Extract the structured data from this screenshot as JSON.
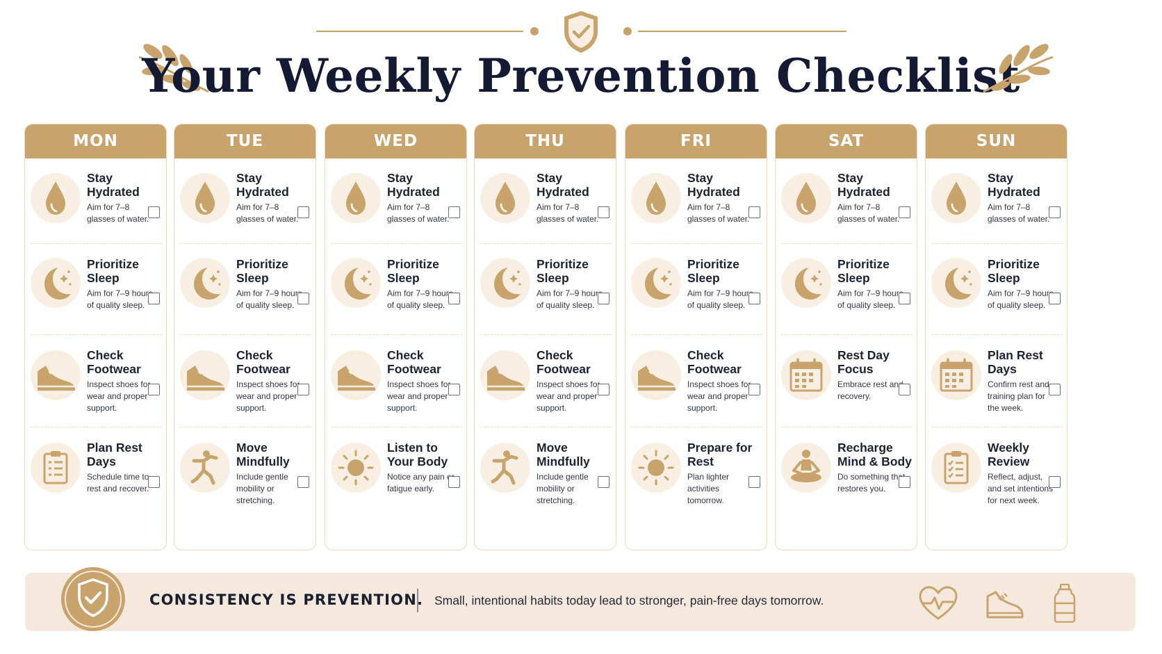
{
  "title": "Your Weekly Prevention Checklist",
  "colors": {
    "accent": "#c9a36c",
    "accent_light": "#f8efe2",
    "navy": "#141a33",
    "banner_bg": "#f4e9dc"
  },
  "days": [
    {
      "name": "MON",
      "items": [
        {
          "title": "Stay Hydrated",
          "desc": "Aim for 7–8 glasses of water.",
          "icon": "water-drop-icon",
          "checked": false
        },
        {
          "title": "Prioritize Sleep",
          "desc": "Aim for 7–9 hours of quality sleep.",
          "icon": "moon-icon",
          "checked": false
        },
        {
          "title": "Check Footwear",
          "desc": "Inspect shoes for wear and proper support.",
          "icon": "shoe-icon",
          "checked": false
        },
        {
          "title": "Plan Rest Days",
          "desc": "Schedule time to rest and recover.",
          "icon": "clipboard-icon",
          "checked": false
        }
      ]
    },
    {
      "name": "TUE",
      "items": [
        {
          "title": "Stay Hydrated",
          "desc": "Aim for 7–8 glasses of water.",
          "icon": "water-drop-icon",
          "checked": false
        },
        {
          "title": "Prioritize Sleep",
          "desc": "Aim for 7–9 hours of quality sleep.",
          "icon": "moon-icon",
          "checked": false
        },
        {
          "title": "Check Footwear",
          "desc": "Inspect shoes for wear and proper support.",
          "icon": "shoe-icon",
          "checked": false
        },
        {
          "title": "Move Mindfully",
          "desc": "Include gentle mobility or stretching.",
          "icon": "stretch-icon",
          "checked": false
        }
      ]
    },
    {
      "name": "WED",
      "items": [
        {
          "title": "Stay Hydrated",
          "desc": "Aim for 7–8 glasses of water.",
          "icon": "water-drop-icon",
          "checked": false
        },
        {
          "title": "Prioritize Sleep",
          "desc": "Aim for 7–9 hours of quality sleep.",
          "icon": "moon-icon",
          "checked": false
        },
        {
          "title": "Check Footwear",
          "desc": "Inspect shoes for wear and proper support.",
          "icon": "shoe-icon",
          "checked": false
        },
        {
          "title": "Listen to Your Body",
          "desc": "Notice any pain or fatigue early.",
          "icon": "sun-icon",
          "checked": false
        }
      ]
    },
    {
      "name": "THU",
      "items": [
        {
          "title": "Stay Hydrated",
          "desc": "Aim for 7–8 glasses of water.",
          "icon": "water-drop-icon",
          "checked": false
        },
        {
          "title": "Prioritize Sleep",
          "desc": "Aim for 7–9 hours of quality sleep.",
          "icon": "moon-icon",
          "checked": false
        },
        {
          "title": "Check Footwear",
          "desc": "Inspect shoes for wear and proper support.",
          "icon": "shoe-icon",
          "checked": false
        },
        {
          "title": "Move Mindfully",
          "desc": "Include gentle mobility or stretching.",
          "icon": "stretch-icon",
          "checked": false
        }
      ]
    },
    {
      "name": "FRI",
      "items": [
        {
          "title": "Stay Hydrated",
          "desc": "Aim for 7–8 glasses of water.",
          "icon": "water-drop-icon",
          "checked": false
        },
        {
          "title": "Prioritize Sleep",
          "desc": "Aim for 7–9 hours of quality sleep.",
          "icon": "moon-icon",
          "checked": false
        },
        {
          "title": "Check Footwear",
          "desc": "Inspect shoes for wear and proper support.",
          "icon": "shoe-icon",
          "checked": false
        },
        {
          "title": "Prepare for Rest",
          "desc": "Plan lighter activities tomorrow.",
          "icon": "sun-icon",
          "checked": false
        }
      ]
    },
    {
      "name": "SAT",
      "items": [
        {
          "title": "Stay Hydrated",
          "desc": "Aim for 7–8 glasses of water.",
          "icon": "water-drop-icon",
          "checked": false
        },
        {
          "title": "Prioritize Sleep",
          "desc": "Aim for 7–9 hours of quality sleep.",
          "icon": "moon-icon",
          "checked": false
        },
        {
          "title": "Rest Day Focus",
          "desc": "Embrace rest and recovery.",
          "icon": "calendar-icon",
          "checked": false
        },
        {
          "title": "Recharge Mind & Body",
          "desc": "Do something that restores you.",
          "icon": "meditation-icon",
          "checked": false
        }
      ]
    },
    {
      "name": "SUN",
      "items": [
        {
          "title": "Stay Hydrated",
          "desc": "Aim for 7–8 glasses of water.",
          "icon": "water-drop-icon",
          "checked": false
        },
        {
          "title": "Prioritize Sleep",
          "desc": "Aim for 7–9 hours of quality sleep.",
          "icon": "moon-icon",
          "checked": false
        },
        {
          "title": "Plan Rest Days",
          "desc": "Confirm rest and training plan for the week.",
          "icon": "calendar-icon",
          "checked": false
        },
        {
          "title": "Weekly Review",
          "desc": "Reflect, adjust, and set intentions for next week.",
          "icon": "checklist-icon",
          "checked": false
        }
      ]
    }
  ],
  "banner": {
    "title": "CONSISTENCY IS PREVENTION.",
    "message": "Small, intentional habits today lead to stronger, pain-free days tomorrow.",
    "icons": [
      "heartbeat-icon",
      "shoe-icon",
      "water-bottle-icon"
    ]
  }
}
